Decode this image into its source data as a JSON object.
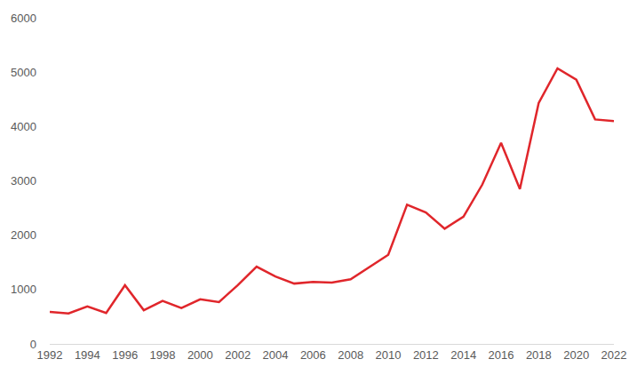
{
  "chart_data": {
    "type": "line",
    "color": "#e0262b",
    "grid": false,
    "x": [
      1992,
      1993,
      1994,
      1995,
      1996,
      1997,
      1998,
      1999,
      2000,
      2001,
      2002,
      2003,
      2004,
      2005,
      2006,
      2007,
      2008,
      2009,
      2010,
      2011,
      2012,
      2013,
      2014,
      2015,
      2016,
      2017,
      2018,
      2019,
      2020,
      2021,
      2022
    ],
    "values": [
      590,
      560,
      690,
      570,
      1080,
      620,
      790,
      660,
      820,
      770,
      1080,
      1420,
      1240,
      1110,
      1140,
      1130,
      1190,
      1420,
      1640,
      2560,
      2420,
      2120,
      2340,
      2930,
      3700,
      2850,
      4430,
      5070,
      4860,
      4130,
      4100
    ],
    "xlim": [
      1992,
      2022
    ],
    "xticks": [
      1992,
      1994,
      1996,
      1998,
      2000,
      2002,
      2004,
      2006,
      2008,
      2010,
      2012,
      2014,
      2016,
      2018,
      2020,
      2022
    ],
    "ylim": [
      0,
      6000
    ],
    "yticks": [
      0,
      1000,
      2000,
      3000,
      4000,
      5000,
      6000
    ]
  }
}
